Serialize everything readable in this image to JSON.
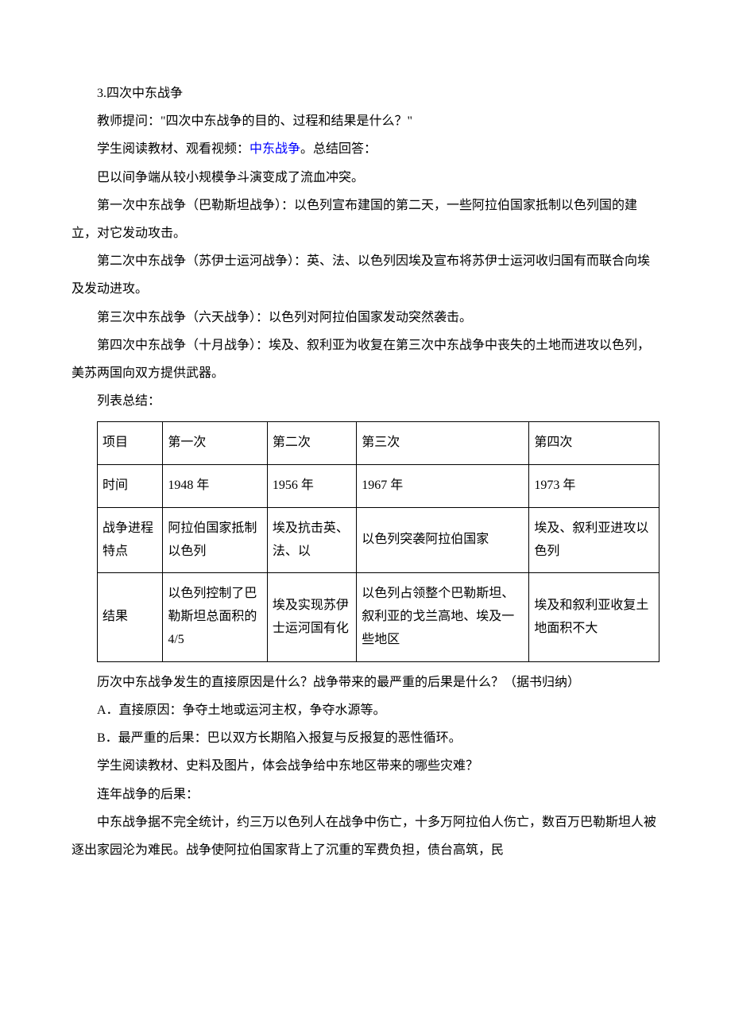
{
  "section": {
    "heading": "3.四次中东战争",
    "p1_pre": "教师提问：\"四次中东战争的目的、过程和结果是什么？\"",
    "p2_a": "学生阅读教材、观看视频：",
    "p2_link": "中东战争",
    "p2_b": "。总结回答：",
    "p3": "巴以间争端从较小规模争斗演变成了流血冲突。",
    "p4": "第一次中东战争（巴勒斯坦战争）：以色列宣布建国的第二天，一些阿拉伯国家抵制以色列国的建立，对它发动攻击。",
    "p5": "第二次中东战争（苏伊士运河战争）：英、法、以色列因埃及宣布将苏伊士运河收归国有而联合向埃及发动进攻。",
    "p6": "第三次中东战争（六天战争）：以色列对阿拉伯国家发动突然袭击。",
    "p7": "第四次中东战争（十月战争）：埃及、叙利亚为收复在第三次中东战争中丧失的土地而进攻以色列，美苏两国向双方提供武器。",
    "p8": "列表总结：",
    "q1": "历次中东战争发生的直接原因是什么？战争带来的最严重的后果是什么？（据书归纳）",
    "a1": "A．直接原因：争夺土地或运河主权，争夺水源等。",
    "b1": "B．最严重的后果：巴以双方长期陷入报复与反报复的恶性循环。",
    "p9": "学生阅读教材、史料及图片，体会战争给中东地区带来的哪些灾难？",
    "p10": "连年战争的后果：",
    "p11": "中东战争据不完全统计，约三万以色列人在战争中伤亡，十多万阿拉伯人伤亡，数百万巴勒斯坦人被逐出家园沦为难民。战争使阿拉伯国家背上了沉重的军费负担，债台高筑，民"
  },
  "table": {
    "columns": [
      "项目",
      "第一次",
      "第二次",
      "第三次",
      "第四次"
    ],
    "rows": [
      [
        "时间",
        "1948 年",
        "1956 年",
        "1967 年",
        "1973 年"
      ],
      [
        "战争进程特点",
        "阿拉伯国家抵制以色列",
        "埃及抗击英、法、以",
        "以色列突袭阿拉伯国家",
        "埃及、叙利亚进攻以色列"
      ],
      [
        "结果",
        "以色列控制了巴勒斯坦总面积的 4/5",
        "埃及实现苏伊士运河国有化",
        "以色列占领整个巴勒斯坦、叙利亚的戈兰高地、埃及一些地区",
        "埃及和叙利亚收复土地面积不大"
      ]
    ],
    "col_classes": [
      "col0",
      "col1",
      "col2",
      "col3",
      "col4"
    ],
    "border_color": "#000000",
    "cell_fontsize": 16
  },
  "colors": {
    "text": "#000000",
    "link": "#0000ff",
    "background": "#ffffff"
  },
  "typography": {
    "body_fontsize": 16,
    "line_height": 2.2,
    "font_family": "SimSun"
  }
}
